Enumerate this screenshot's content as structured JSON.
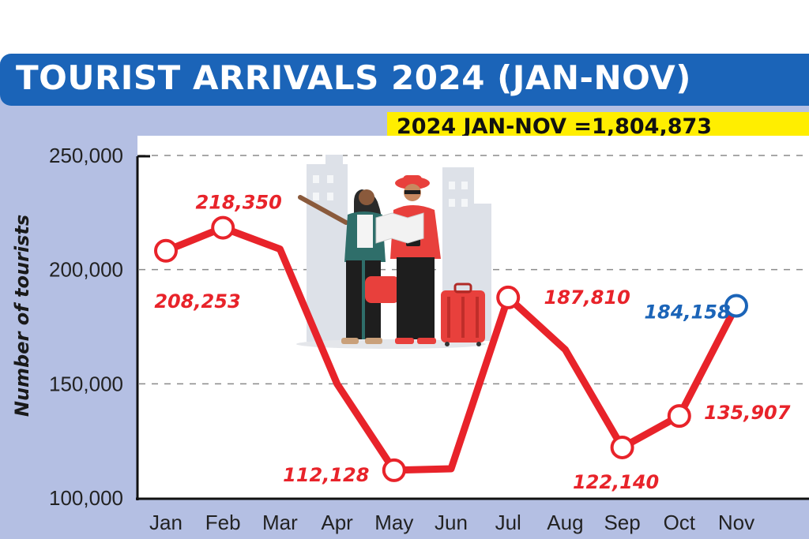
{
  "title": "TOURIST ARRIVALS 2024 (JAN-NOV)",
  "total_badge": "2024 JAN-NOV =1,804,873",
  "colors": {
    "title_bar": "#1b64b8",
    "panel": "#b4bfe3",
    "badge": "#ffee00",
    "line": "#e8232a",
    "highlight": "#1b64b8"
  },
  "illustration": "two-tourists-with-map-and-suitcase",
  "chart_data": {
    "type": "line",
    "title": "TOURIST ARRIVALS 2024 (JAN-NOV)",
    "xlabel": "",
    "ylabel": "Number of tourists",
    "categories": [
      "Jan",
      "Feb",
      "Mar",
      "Apr",
      "May",
      "Jun",
      "Jul",
      "Aug",
      "Sep",
      "Oct",
      "Nov"
    ],
    "values": [
      208253,
      218350,
      209000,
      150000,
      112128,
      112800,
      187810,
      165000,
      122140,
      135907,
      184158
    ],
    "data_labels": [
      "208,253",
      "218,350",
      "",
      "",
      "112,128",
      "",
      "187,810",
      "",
      "122,140",
      "135,907",
      "184,158"
    ],
    "marked_points": [
      0,
      1,
      4,
      6,
      8,
      9,
      10
    ],
    "highlight_point": 10,
    "ylim": [
      100000,
      250000
    ],
    "yticks": [
      100000,
      150000,
      200000,
      250000
    ],
    "ytick_labels": [
      "100,000",
      "150,000",
      "200,000",
      "250,000"
    ],
    "grid": true
  }
}
